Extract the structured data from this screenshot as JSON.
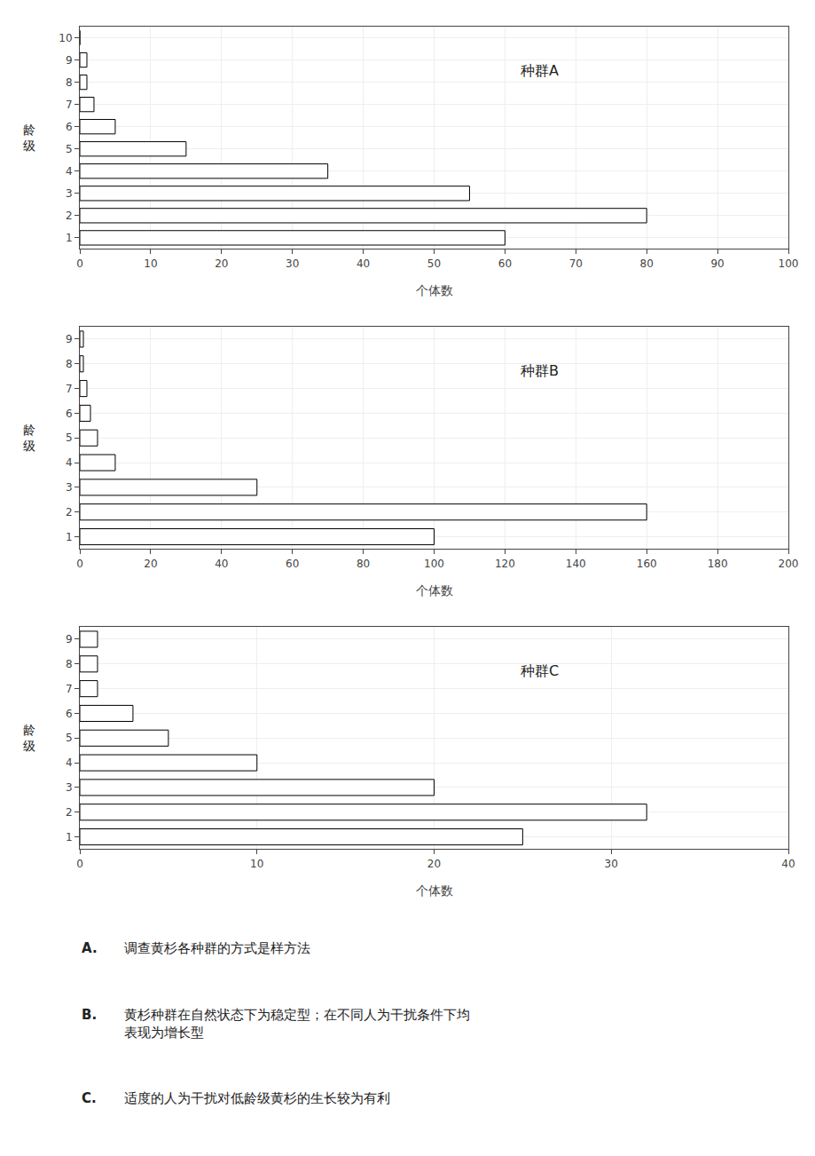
{
  "chart_data": [
    {
      "type": "bar",
      "orientation": "horizontal",
      "title": "种群A",
      "xlabel": "个体数",
      "ylabel": "龄\n级",
      "categories": [
        1,
        2,
        3,
        4,
        5,
        6,
        7,
        8,
        9,
        10
      ],
      "values": [
        60,
        80,
        55,
        35,
        15,
        5,
        2,
        1,
        1,
        0
      ],
      "xlim": [
        0,
        100
      ],
      "xticks": [
        0,
        10,
        20,
        30,
        40,
        50,
        60,
        70,
        80,
        90,
        100
      ],
      "ylim": [
        0.5,
        10.5
      ],
      "yticks": [
        1,
        2,
        3,
        4,
        5,
        6,
        7,
        8,
        9,
        10
      ],
      "color": "white",
      "grid": true
    },
    {
      "type": "bar",
      "orientation": "horizontal",
      "title": "种群B",
      "xlabel": "个体数",
      "ylabel": "龄\n级",
      "categories": [
        1,
        2,
        3,
        4,
        5,
        6,
        7,
        8,
        9
      ],
      "values": [
        100,
        160,
        50,
        10,
        5,
        3,
        2,
        1,
        1
      ],
      "xlim": [
        0,
        200
      ],
      "xticks": [
        0,
        20,
        40,
        60,
        80,
        100,
        120,
        140,
        160,
        180,
        200
      ],
      "ylim": [
        0.5,
        9.5
      ],
      "yticks": [
        1,
        2,
        3,
        4,
        5,
        6,
        7,
        8,
        9
      ],
      "color": "white",
      "grid": true
    },
    {
      "type": "bar",
      "orientation": "horizontal",
      "title": "种群C",
      "xlabel": "个体数",
      "ylabel": "龄\n级",
      "categories": [
        1,
        2,
        3,
        4,
        5,
        6,
        7,
        8,
        9
      ],
      "values": [
        25,
        32,
        20,
        10,
        5,
        3,
        1,
        1,
        1
      ],
      "xlim": [
        0,
        40
      ],
      "xticks": [
        0,
        10,
        20,
        30,
        40
      ],
      "ylim": [
        0.5,
        9.5
      ],
      "yticks": [
        1,
        2,
        3,
        4,
        5,
        6,
        7,
        8,
        9
      ],
      "color": "white",
      "grid": true
    }
  ],
  "annotations": [
    {
      "label": "A.",
      "text": "调查黄杉各种群的方式是样方法"
    },
    {
      "label": "B.",
      "text": "黄杉种群在自然状态下为稳定型；在不同人为干扰条件下均\n表现为增长型"
    },
    {
      "label": "C.",
      "text": "适度的人为干扰对低龄级黄杉的生长较为有利"
    }
  ]
}
